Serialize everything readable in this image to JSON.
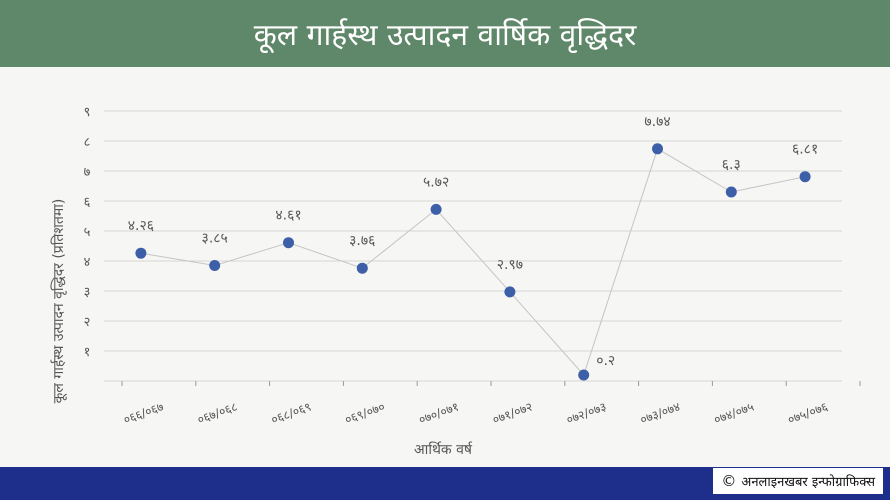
{
  "header": {
    "title": "कूल गार्हस्थ उत्पादन वार्षिक वृद्धिदर"
  },
  "footer": {
    "copyright_symbol": "©",
    "credit": "अनलाइनखबर इन्फोग्राफिक्स"
  },
  "colors": {
    "title_bg": "#5f876a",
    "footer_bg": "#1d2f8a",
    "marker": "#3d5fa8",
    "line": "#c4c4c4",
    "grid": "#d6d6d6",
    "text": "#555555"
  },
  "chart_data": {
    "type": "line",
    "title": "कूल गार्हस्थ उत्पादन वार्षिक वृद्धिदर",
    "xlabel": "आर्थिक वर्ष",
    "ylabel": "कूल गार्हस्थ उत्पादन वृद्धिदर (प्रतिशतमा)",
    "categories": [
      "०६६/०६७",
      "०६७/०६८",
      "०६८/०६९",
      "०६९/०७०",
      "०७०/०७१",
      "०७१/०७२",
      "०७२/०७३",
      "०७३/०७४",
      "०७४/०७५",
      "०७५/०७६"
    ],
    "values": [
      4.26,
      3.85,
      4.61,
      3.76,
      5.72,
      2.97,
      0.2,
      7.74,
      6.3,
      6.81
    ],
    "data_labels": [
      "४.२६",
      "३.८५",
      "४.६१",
      "३.७६",
      "५.७२",
      "२.९७",
      "०.२",
      "७.७४",
      "६.३",
      "६.८१"
    ],
    "y_ticks": [
      1,
      2,
      3,
      4,
      5,
      6,
      7,
      8,
      9
    ],
    "y_tick_labels": [
      "१",
      "२",
      "३",
      "४",
      "५",
      "६",
      "७",
      "८",
      "९"
    ],
    "ylim": [
      0,
      9
    ],
    "grid": true,
    "legend": "none"
  }
}
